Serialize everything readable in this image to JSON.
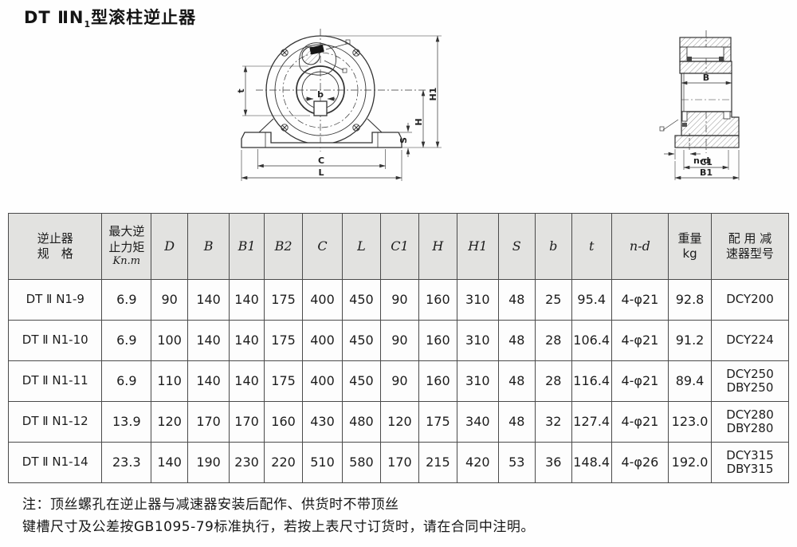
{
  "title": {
    "prefix": "DT ⅡN",
    "sub": "1",
    "suffix": "型滚柱逆止器"
  },
  "drawings": {
    "front": {
      "t": "t",
      "b": "b",
      "C": "C",
      "L": "L",
      "S": "S",
      "H": "H",
      "H1": "H1"
    },
    "side": {
      "B": "B",
      "nd": "n-d",
      "C1": "C1",
      "B1": "B1"
    }
  },
  "table": {
    "col_widths_pct": [
      12.0,
      6.3,
      4.7,
      5.3,
      4.5,
      4.9,
      5.1,
      4.9,
      4.9,
      4.9,
      5.3,
      4.7,
      4.7,
      5.1,
      7.3,
      5.5,
      9.9
    ],
    "headers": [
      {
        "id": "spec",
        "lines": [
          "逆止器",
          "规　格"
        ]
      },
      {
        "id": "torque",
        "lines": [
          "最大逆",
          "止力矩",
          "Kn.m"
        ],
        "unit_last": true
      },
      {
        "id": "D",
        "lines": [
          "D"
        ],
        "dim": true
      },
      {
        "id": "B",
        "lines": [
          "B"
        ],
        "dim": true
      },
      {
        "id": "B1",
        "lines": [
          "B1"
        ],
        "dim": true
      },
      {
        "id": "B2",
        "lines": [
          "B2"
        ],
        "dim": true
      },
      {
        "id": "C",
        "lines": [
          "C"
        ],
        "dim": true
      },
      {
        "id": "L",
        "lines": [
          "L"
        ],
        "dim": true
      },
      {
        "id": "C1",
        "lines": [
          "C1"
        ],
        "dim": true
      },
      {
        "id": "H",
        "lines": [
          "H"
        ],
        "dim": true
      },
      {
        "id": "H1",
        "lines": [
          "H1"
        ],
        "dim": true
      },
      {
        "id": "S",
        "lines": [
          "S"
        ],
        "dim": true
      },
      {
        "id": "b",
        "lines": [
          "b"
        ],
        "dim": true
      },
      {
        "id": "t",
        "lines": [
          "t"
        ],
        "dim": true
      },
      {
        "id": "n-d",
        "lines": [
          "n-d"
        ],
        "dim": true
      },
      {
        "id": "weight",
        "lines": [
          "重量",
          "kg"
        ]
      },
      {
        "id": "reducer",
        "lines": [
          "配 用 减",
          "速器型号"
        ]
      }
    ],
    "rows": [
      [
        "DT Ⅱ N1-9",
        "6.9",
        "90",
        "140",
        "140",
        "175",
        "400",
        "450",
        "90",
        "160",
        "310",
        "48",
        "25",
        "95.4",
        "4-φ21",
        "92.8",
        "DCY200"
      ],
      [
        "DT Ⅱ N1-10",
        "6.9",
        "100",
        "140",
        "140",
        "175",
        "400",
        "450",
        "90",
        "160",
        "310",
        "48",
        "28",
        "106.4",
        "4-φ21",
        "91.2",
        "DCY224"
      ],
      [
        "DT Ⅱ N1-11",
        "6.9",
        "110",
        "140",
        "140",
        "175",
        "400",
        "450",
        "90",
        "160",
        "310",
        "48",
        "28",
        "116.4",
        "4-φ21",
        "89.4",
        "DCY250\nDBY250"
      ],
      [
        "DT Ⅱ N1-12",
        "13.9",
        "120",
        "170",
        "170",
        "160",
        "430",
        "480",
        "120",
        "175",
        "340",
        "48",
        "32",
        "127.4",
        "4-φ21",
        "123.0",
        "DCY280\nDBY280"
      ],
      [
        "DT Ⅱ N1-14",
        "23.3",
        "140",
        "190",
        "230",
        "220",
        "510",
        "580",
        "170",
        "215",
        "420",
        "53",
        "36",
        "148.4",
        "4-φ26",
        "192.0",
        "DCY315\nDBY315"
      ]
    ]
  },
  "notes": [
    "注：顶丝螺孔在逆止器与减速器安装后配作、供货时不带顶丝",
    "键槽尺寸及公差按GB1095-79标准执行，若按上表尺寸订货时，请在合同中注明。"
  ]
}
